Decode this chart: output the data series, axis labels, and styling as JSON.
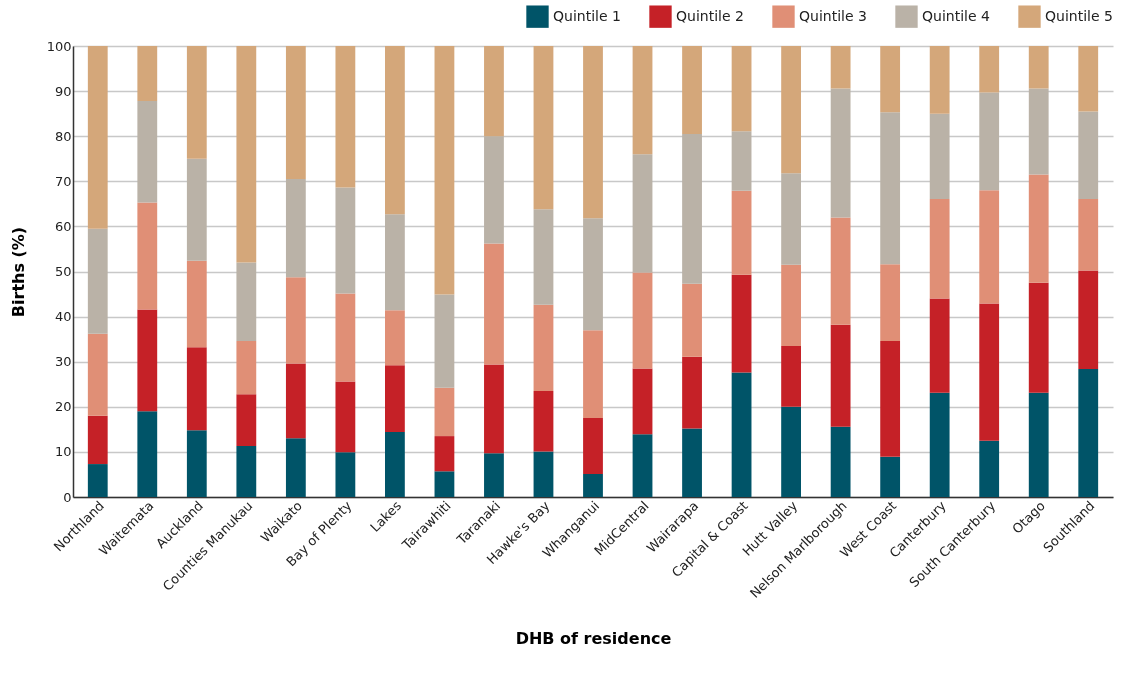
{
  "chart_data": {
    "type": "bar",
    "stacked": true,
    "xlabel": "DHB of residence",
    "ylabel": "Births (%)",
    "categories": [
      "Northland",
      "Waitemata",
      "Auckland",
      "Counties Manukau",
      "Waikato",
      "Bay of Plenty",
      "Lakes",
      "Tairawhiti",
      "Taranaki",
      "Hawke's Bay",
      "Whanganui",
      "MidCentral",
      "Wairarapa",
      "Capital & Coast",
      "Hutt Valley",
      "Nelson Marlborough",
      "West Coast",
      "Canterbury",
      "South Canterbury",
      "Otago",
      "Southland"
    ],
    "series": [
      {
        "name": "Quintile 1",
        "color": "#005468",
        "values": [
          7.3,
          19,
          14.8,
          11.3,
          13,
          9.9,
          14.4,
          5.7,
          9.7,
          10.1,
          5.1,
          13.9,
          15.2,
          27.6,
          20,
          15.6,
          8.9,
          23.1,
          12.5,
          23.1,
          28.4
        ]
      },
      {
        "name": "Quintile 2",
        "color": "#c52127",
        "values": [
          10.7,
          22.6,
          18.4,
          11.5,
          16.6,
          15.7,
          14.8,
          7.8,
          19.7,
          13.4,
          12.4,
          14.6,
          15.9,
          21.7,
          13.5,
          22.6,
          25.7,
          20.9,
          30.4,
          24.4,
          21.8
        ]
      },
      {
        "name": "Quintile 3",
        "color": "#e08f76",
        "values": [
          18.2,
          23.7,
          19.2,
          11.8,
          19.1,
          19.5,
          12.2,
          10.7,
          26.8,
          19.1,
          19.5,
          21.3,
          16.2,
          18.6,
          18,
          23.8,
          17,
          22.1,
          25.1,
          24,
          15.9
        ]
      },
      {
        "name": "Quintile 4",
        "color": "#bab2a7",
        "values": [
          23.3,
          22.5,
          22.6,
          17.4,
          21.8,
          23.5,
          21.3,
          20.7,
          23.8,
          21.2,
          24.8,
          26.2,
          33.2,
          13.2,
          20.3,
          28.6,
          33.7,
          18.9,
          21.7,
          19.1,
          19.4
        ]
      },
      {
        "name": "Quintile 5",
        "color": "#d4a77a",
        "values": [
          40.5,
          12.2,
          25,
          48,
          29.5,
          31.4,
          37.3,
          55.1,
          20,
          36.2,
          38.2,
          24,
          19.5,
          18.9,
          28.2,
          9.4,
          14.7,
          15,
          10.3,
          9.4,
          14.5
        ]
      }
    ],
    "ylim": [
      0,
      100
    ],
    "yticks": [
      0,
      10,
      20,
      30,
      40,
      50,
      60,
      70,
      80,
      90,
      100
    ],
    "grid": "y",
    "legend": "top right"
  }
}
